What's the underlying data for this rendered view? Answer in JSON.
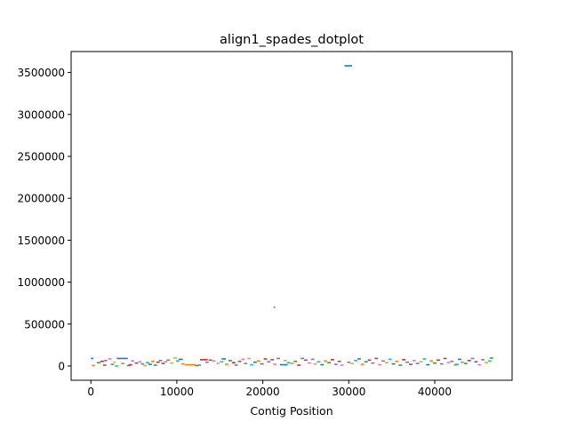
{
  "chart_data": {
    "type": "scatter",
    "title": "align1_spades_dotplot",
    "xlabel": "Contig Position",
    "ylabel": "",
    "xlim": [
      -2300,
      49000
    ],
    "ylim": [
      -170000,
      3750000
    ],
    "x_ticks": [
      0,
      10000,
      20000,
      30000,
      40000
    ],
    "x_tick_labels": [
      "0",
      "10000",
      "20000",
      "30000",
      "40000"
    ],
    "y_ticks": [
      0,
      500000,
      1000000,
      1500000,
      2000000,
      2500000,
      3000000,
      3500000
    ],
    "y_tick_labels": [
      "0",
      "500000",
      "1000000",
      "1500000",
      "2000000",
      "2500000",
      "3000000",
      "3500000"
    ],
    "grid": false,
    "legend": "none",
    "palette": [
      "#1f77b4",
      "#ff7f0e",
      "#2ca02c",
      "#d62728",
      "#9467bd",
      "#8c564b",
      "#e377c2",
      "#7f7f7f",
      "#bcbd22",
      "#17becf"
    ],
    "segments": [
      {
        "x0": 0,
        "x1": 300,
        "y": 90000,
        "color": "#1f77b4"
      },
      {
        "x0": 100,
        "x1": 500,
        "y": 5000,
        "color": "#ff7f0e"
      },
      {
        "x0": 700,
        "x1": 1100,
        "y": 40000,
        "color": "#2ca02c"
      },
      {
        "x0": 1100,
        "x1": 1500,
        "y": 55000,
        "color": "#d62728"
      },
      {
        "x0": 1500,
        "x1": 1900,
        "y": 65000,
        "color": "#9467bd"
      },
      {
        "x0": 1400,
        "x1": 1800,
        "y": 10000,
        "color": "#8c564b"
      },
      {
        "x0": 2000,
        "x1": 2400,
        "y": 85000,
        "color": "#e377c2"
      },
      {
        "x0": 2300,
        "x1": 2700,
        "y": 20000,
        "color": "#7f7f7f"
      },
      {
        "x0": 2600,
        "x1": 2900,
        "y": 45000,
        "color": "#bcbd22"
      },
      {
        "x0": 2800,
        "x1": 3200,
        "y": 0,
        "color": "#17becf"
      },
      {
        "x0": 3000,
        "x1": 4300,
        "y": 90000,
        "color": "#1f77b4"
      },
      {
        "x0": 3500,
        "x1": 3900,
        "y": 30000,
        "color": "#ff7f0e"
      },
      {
        "x0": 4200,
        "x1": 4600,
        "y": 5000,
        "color": "#2ca02c"
      },
      {
        "x0": 4400,
        "x1": 4800,
        "y": 15000,
        "color": "#d62728"
      },
      {
        "x0": 4700,
        "x1": 5000,
        "y": 60000,
        "color": "#9467bd"
      },
      {
        "x0": 5100,
        "x1": 5500,
        "y": 35000,
        "color": "#8c564b"
      },
      {
        "x0": 5500,
        "x1": 5900,
        "y": 50000,
        "color": "#e377c2"
      },
      {
        "x0": 5800,
        "x1": 6200,
        "y": 25000,
        "color": "#7f7f7f"
      },
      {
        "x0": 6100,
        "x1": 6500,
        "y": 5000,
        "color": "#bcbd22"
      },
      {
        "x0": 6400,
        "x1": 6800,
        "y": 40000,
        "color": "#17becf"
      },
      {
        "x0": 6700,
        "x1": 7100,
        "y": 20000,
        "color": "#1f77b4"
      },
      {
        "x0": 7000,
        "x1": 7400,
        "y": 55000,
        "color": "#ff7f0e"
      },
      {
        "x0": 7300,
        "x1": 7700,
        "y": 10000,
        "color": "#2ca02c"
      },
      {
        "x0": 7600,
        "x1": 8000,
        "y": 45000,
        "color": "#d62728"
      },
      {
        "x0": 7900,
        "x1": 8300,
        "y": 65000,
        "color": "#9467bd"
      },
      {
        "x0": 8200,
        "x1": 8600,
        "y": 30000,
        "color": "#8c564b"
      },
      {
        "x0": 8500,
        "x1": 8900,
        "y": 50000,
        "color": "#e377c2"
      },
      {
        "x0": 8800,
        "x1": 9200,
        "y": 70000,
        "color": "#7f7f7f"
      },
      {
        "x0": 9200,
        "x1": 9600,
        "y": 35000,
        "color": "#bcbd22"
      },
      {
        "x0": 9600,
        "x1": 10000,
        "y": 95000,
        "color": "#bcbd22"
      },
      {
        "x0": 9900,
        "x1": 10300,
        "y": 60000,
        "color": "#17becf"
      },
      {
        "x0": 10200,
        "x1": 10700,
        "y": 80000,
        "color": "#1f77b4"
      },
      {
        "x0": 10500,
        "x1": 10900,
        "y": 25000,
        "color": "#ff7f0e"
      },
      {
        "x0": 10900,
        "x1": 12200,
        "y": 15000,
        "color": "#ff7f0e"
      },
      {
        "x0": 12100,
        "x1": 12500,
        "y": 5000,
        "color": "#2ca02c"
      },
      {
        "x0": 12400,
        "x1": 12800,
        "y": 10000,
        "color": "#7f7f7f"
      },
      {
        "x0": 12700,
        "x1": 13600,
        "y": 75000,
        "color": "#d62728"
      },
      {
        "x0": 13300,
        "x1": 13700,
        "y": 45000,
        "color": "#9467bd"
      },
      {
        "x0": 13700,
        "x1": 14100,
        "y": 70000,
        "color": "#8c564b"
      },
      {
        "x0": 14100,
        "x1": 14500,
        "y": 60000,
        "color": "#e377c2"
      },
      {
        "x0": 14600,
        "x1": 15000,
        "y": 30000,
        "color": "#bcbd22"
      },
      {
        "x0": 15000,
        "x1": 15400,
        "y": 50000,
        "color": "#17becf"
      },
      {
        "x0": 15200,
        "x1": 15700,
        "y": 85000,
        "color": "#1f77b4"
      },
      {
        "x0": 15600,
        "x1": 16000,
        "y": 20000,
        "color": "#ff7f0e"
      },
      {
        "x0": 16000,
        "x1": 16400,
        "y": 65000,
        "color": "#2ca02c"
      },
      {
        "x0": 16400,
        "x1": 16800,
        "y": 40000,
        "color": "#d62728"
      },
      {
        "x0": 16700,
        "x1": 17100,
        "y": 10000,
        "color": "#9467bd"
      },
      {
        "x0": 17100,
        "x1": 17500,
        "y": 55000,
        "color": "#8c564b"
      },
      {
        "x0": 17500,
        "x1": 17900,
        "y": 80000,
        "color": "#e377c2"
      },
      {
        "x0": 17800,
        "x1": 18200,
        "y": 30000,
        "color": "#7f7f7f"
      },
      {
        "x0": 18200,
        "x1": 18600,
        "y": 90000,
        "color": "#bcbd22"
      },
      {
        "x0": 18500,
        "x1": 18900,
        "y": 15000,
        "color": "#17becf"
      },
      {
        "x0": 18900,
        "x1": 19300,
        "y": 45000,
        "color": "#1f77b4"
      },
      {
        "x0": 19300,
        "x1": 19700,
        "y": 60000,
        "color": "#ff7f0e"
      },
      {
        "x0": 19700,
        "x1": 20100,
        "y": 25000,
        "color": "#2ca02c"
      },
      {
        "x0": 20100,
        "x1": 20500,
        "y": 85000,
        "color": "#d62728"
      },
      {
        "x0": 20500,
        "x1": 20900,
        "y": 50000,
        "color": "#9467bd"
      },
      {
        "x0": 20900,
        "x1": 21300,
        "y": 75000,
        "color": "#8c564b"
      },
      {
        "x0": 21200,
        "x1": 21600,
        "y": 20000,
        "color": "#e377c2"
      },
      {
        "x0": 21250,
        "x1": 21450,
        "y": 700000,
        "color": "#7f7f7f"
      },
      {
        "x0": 21600,
        "x1": 22000,
        "y": 90000,
        "color": "#7f7f7f"
      },
      {
        "x0": 22000,
        "x1": 22900,
        "y": 15000,
        "color": "#1f77b4"
      },
      {
        "x0": 22400,
        "x1": 22800,
        "y": 65000,
        "color": "#bcbd22"
      },
      {
        "x0": 22800,
        "x1": 23200,
        "y": 40000,
        "color": "#17becf"
      },
      {
        "x0": 23200,
        "x1": 23600,
        "y": 30000,
        "color": "#ff7f0e"
      },
      {
        "x0": 23600,
        "x1": 24000,
        "y": 55000,
        "color": "#2ca02c"
      },
      {
        "x0": 24000,
        "x1": 24400,
        "y": 10000,
        "color": "#d62728"
      },
      {
        "x0": 24400,
        "x1": 24800,
        "y": 90000,
        "color": "#9467bd"
      },
      {
        "x0": 24800,
        "x1": 25200,
        "y": 70000,
        "color": "#8c564b"
      },
      {
        "x0": 25200,
        "x1": 25600,
        "y": 35000,
        "color": "#e377c2"
      },
      {
        "x0": 25600,
        "x1": 26000,
        "y": 80000,
        "color": "#7f7f7f"
      },
      {
        "x0": 25900,
        "x1": 26300,
        "y": 25000,
        "color": "#bcbd22"
      },
      {
        "x0": 26300,
        "x1": 26700,
        "y": 50000,
        "color": "#17becf"
      },
      {
        "x0": 26700,
        "x1": 27100,
        "y": 15000,
        "color": "#1f77b4"
      },
      {
        "x0": 27100,
        "x1": 27500,
        "y": 60000,
        "color": "#ff7f0e"
      },
      {
        "x0": 27500,
        "x1": 27900,
        "y": 40000,
        "color": "#2ca02c"
      },
      {
        "x0": 27900,
        "x1": 28300,
        "y": 75000,
        "color": "#d62728"
      },
      {
        "x0": 28300,
        "x1": 28700,
        "y": 20000,
        "color": "#9467bd"
      },
      {
        "x0": 28700,
        "x1": 29100,
        "y": 55000,
        "color": "#8c564b"
      },
      {
        "x0": 29000,
        "x1": 29400,
        "y": 10000,
        "color": "#e377c2"
      },
      {
        "x0": 29500,
        "x1": 30400,
        "y": 3580000,
        "color": "#1f77b4"
      },
      {
        "x0": 29800,
        "x1": 30200,
        "y": 45000,
        "color": "#7f7f7f"
      },
      {
        "x0": 30200,
        "x1": 30600,
        "y": 30000,
        "color": "#bcbd22"
      },
      {
        "x0": 30600,
        "x1": 31000,
        "y": 65000,
        "color": "#17becf"
      },
      {
        "x0": 31000,
        "x1": 31400,
        "y": 85000,
        "color": "#1f77b4"
      },
      {
        "x0": 31400,
        "x1": 31800,
        "y": 20000,
        "color": "#ff7f0e"
      },
      {
        "x0": 31800,
        "x1": 32200,
        "y": 50000,
        "color": "#2ca02c"
      },
      {
        "x0": 32200,
        "x1": 32600,
        "y": 70000,
        "color": "#d62728"
      },
      {
        "x0": 32600,
        "x1": 33000,
        "y": 35000,
        "color": "#9467bd"
      },
      {
        "x0": 33000,
        "x1": 33400,
        "y": 90000,
        "color": "#8c564b"
      },
      {
        "x0": 33400,
        "x1": 33800,
        "y": 15000,
        "color": "#e377c2"
      },
      {
        "x0": 33800,
        "x1": 34200,
        "y": 60000,
        "color": "#7f7f7f"
      },
      {
        "x0": 34200,
        "x1": 34600,
        "y": 40000,
        "color": "#bcbd22"
      },
      {
        "x0": 34600,
        "x1": 35000,
        "y": 80000,
        "color": "#17becf"
      },
      {
        "x0": 35000,
        "x1": 35400,
        "y": 25000,
        "color": "#1f77b4"
      },
      {
        "x0": 35400,
        "x1": 35800,
        "y": 55000,
        "color": "#ff7f0e"
      },
      {
        "x0": 35800,
        "x1": 36200,
        "y": 10000,
        "color": "#2ca02c"
      },
      {
        "x0": 36200,
        "x1": 36600,
        "y": 75000,
        "color": "#d62728"
      },
      {
        "x0": 36600,
        "x1": 37000,
        "y": 45000,
        "color": "#9467bd"
      },
      {
        "x0": 37000,
        "x1": 37400,
        "y": 20000,
        "color": "#8c564b"
      },
      {
        "x0": 37400,
        "x1": 37800,
        "y": 65000,
        "color": "#e377c2"
      },
      {
        "x0": 37800,
        "x1": 38200,
        "y": 30000,
        "color": "#7f7f7f"
      },
      {
        "x0": 38200,
        "x1": 38600,
        "y": 50000,
        "color": "#bcbd22"
      },
      {
        "x0": 38600,
        "x1": 39000,
        "y": 85000,
        "color": "#17becf"
      },
      {
        "x0": 39000,
        "x1": 39400,
        "y": 15000,
        "color": "#1f77b4"
      },
      {
        "x0": 39400,
        "x1": 39800,
        "y": 60000,
        "color": "#ff7f0e"
      },
      {
        "x0": 39800,
        "x1": 40200,
        "y": 35000,
        "color": "#2ca02c"
      },
      {
        "x0": 40200,
        "x1": 40600,
        "y": 70000,
        "color": "#d62728"
      },
      {
        "x0": 40600,
        "x1": 41000,
        "y": 25000,
        "color": "#9467bd"
      },
      {
        "x0": 41000,
        "x1": 41400,
        "y": 90000,
        "color": "#8c564b"
      },
      {
        "x0": 41400,
        "x1": 41800,
        "y": 40000,
        "color": "#e377c2"
      },
      {
        "x0": 41800,
        "x1": 42200,
        "y": 55000,
        "color": "#7f7f7f"
      },
      {
        "x0": 42200,
        "x1": 42600,
        "y": 10000,
        "color": "#bcbd22"
      },
      {
        "x0": 42300,
        "x1": 42800,
        "y": 20000,
        "color": "#17becf"
      },
      {
        "x0": 42700,
        "x1": 43100,
        "y": 80000,
        "color": "#1f77b4"
      },
      {
        "x0": 43000,
        "x1": 43400,
        "y": 45000,
        "color": "#ff7f0e"
      },
      {
        "x0": 43400,
        "x1": 43800,
        "y": 30000,
        "color": "#2ca02c"
      },
      {
        "x0": 43800,
        "x1": 44200,
        "y": 65000,
        "color": "#d62728"
      },
      {
        "x0": 44200,
        "x1": 44600,
        "y": 90000,
        "color": "#9467bd"
      },
      {
        "x0": 44600,
        "x1": 45000,
        "y": 50000,
        "color": "#8c564b"
      },
      {
        "x0": 45000,
        "x1": 45400,
        "y": 15000,
        "color": "#e377c2"
      },
      {
        "x0": 45400,
        "x1": 45800,
        "y": 75000,
        "color": "#7f7f7f"
      },
      {
        "x0": 45800,
        "x1": 46200,
        "y": 40000,
        "color": "#bcbd22"
      },
      {
        "x0": 46200,
        "x1": 46600,
        "y": 60000,
        "color": "#17becf"
      },
      {
        "x0": 46400,
        "x1": 46800,
        "y": 95000,
        "color": "#2ca02c"
      }
    ]
  }
}
